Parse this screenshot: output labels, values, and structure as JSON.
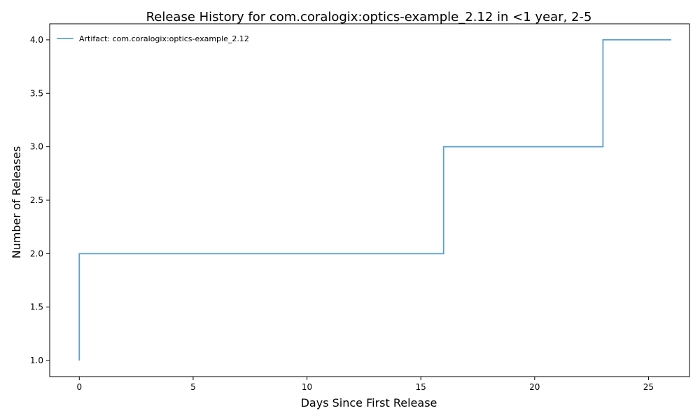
{
  "colors": {
    "series": "#5b9fd0",
    "axis": "#000000",
    "background": "#ffffff"
  },
  "chart_data": {
    "type": "line",
    "step": "post",
    "title": "Release History for com.coralogix:optics-example_2.12 in <1 year, 2-5",
    "xlabel": "Days Since First Release",
    "ylabel": "Number of Releases",
    "xlim": [
      -1.3,
      26.8
    ],
    "ylim": [
      0.85,
      4.15
    ],
    "xticks": [
      0,
      5,
      10,
      15,
      20,
      25
    ],
    "xtick_labels": [
      "0",
      "5",
      "10",
      "15",
      "20",
      "25"
    ],
    "yticks": [
      1.0,
      1.5,
      2.0,
      2.5,
      3.0,
      3.5,
      4.0
    ],
    "ytick_labels": [
      "1.0",
      "1.5",
      "2.0",
      "2.5",
      "3.0",
      "3.5",
      "4.0"
    ],
    "grid": false,
    "legend_position": "upper left",
    "series": [
      {
        "name": "Artifact: com.coralogix:optics-example_2.12",
        "x": [
          0,
          0,
          16,
          23,
          26
        ],
        "y": [
          1,
          2,
          3,
          4,
          4
        ]
      }
    ]
  }
}
